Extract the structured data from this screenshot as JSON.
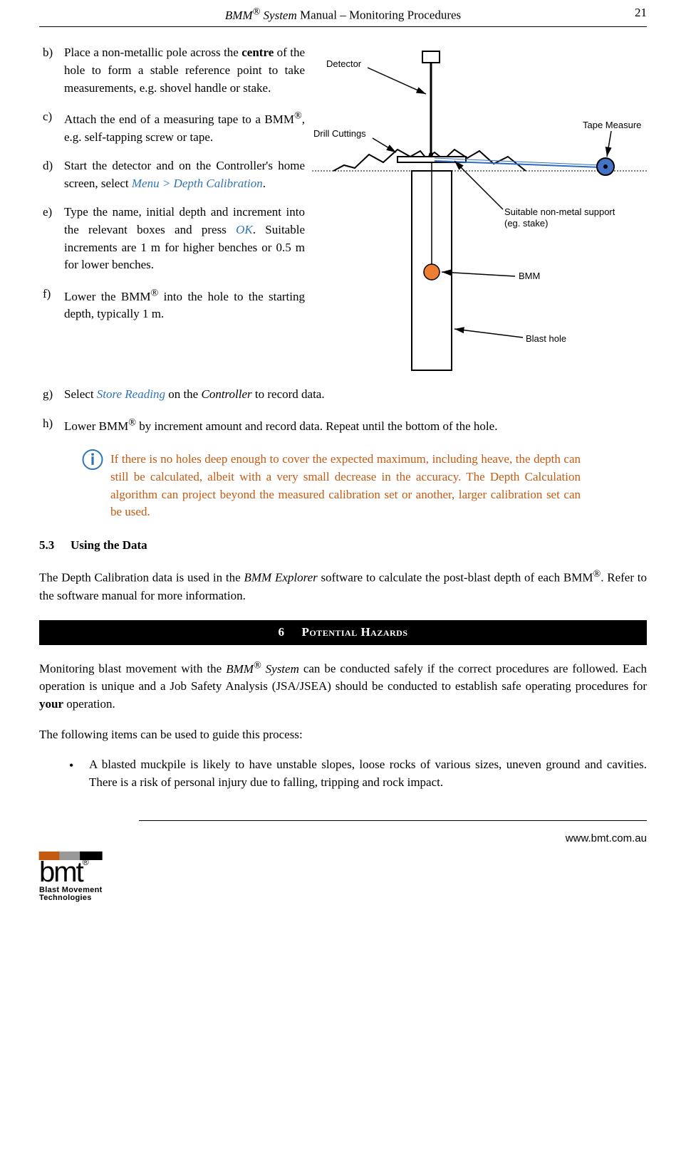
{
  "header": {
    "title_prefix": "BMM",
    "title_reg": "®",
    "title_italic_1": " System",
    "title_rest": " Manual – Monitoring Procedures",
    "page_number": "21"
  },
  "figure": {
    "label_detector": "Detector",
    "label_cuttings": "Drill Cuttings",
    "label_tape": "Tape Measure",
    "label_support_1": "Suitable non-metal support",
    "label_support_2": "(eg. stake)",
    "label_bmm": "BMM",
    "label_hole": "Blast hole",
    "colors": {
      "stroke": "#000000",
      "ground_dash": "#000000",
      "bmm_fill": "#ED7D31",
      "tape_reel_fill": "#4472C4",
      "tape_line": "#2E6CC4"
    }
  },
  "steps": [
    {
      "marker": "b)",
      "html": "Place a non-metallic pole across the <b>centre</b> of the hole to form a stable reference point to take measurements, e.g. shovel handle or stake."
    },
    {
      "marker": "c)",
      "html": "Attach the end of a measuring tape to a BMM<sup>®</sup>, e.g. self-tapping screw or tape."
    },
    {
      "marker": "d)",
      "html": "Start the detector and on the Controller's home screen, select <span class=\"blue-italic\">Menu &gt; Depth Calibration</span>."
    },
    {
      "marker": "e)",
      "html": "Type the name, initial depth and increment into the relevant boxes and press <span class=\"blue-italic\">OK</span>. Suitable increments are 1 m for higher benches or 0.5 m for lower benches."
    },
    {
      "marker": "f)",
      "html": "Lower the BMM<sup>®</sup> into the hole to the starting depth, typically 1 m."
    },
    {
      "marker": "g)",
      "html": "Select <span class=\"blue-italic\">Store Reading</span> on the <i>Controller</i> to record data."
    },
    {
      "marker": "h)",
      "html": "Lower BMM<sup>®</sup> by increment amount and record data. Repeat until the bottom of the hole."
    }
  ],
  "note": {
    "icon": "ⓘ",
    "text": "If there is no holes deep enough to cover the expected maximum, including heave, the depth can still be calculated, albeit with a very small decrease in the accuracy. The Depth Calculation algorithm can project beyond the measured calibration set or another, larger calibration set can be used."
  },
  "subsection": {
    "number": "5.3",
    "title": "Using the Data"
  },
  "using_data_para": "The Depth Calibration data is used in the <i>BMM Explorer</i> software to calculate the post-blast depth of each BMM<sup>®</sup>. Refer to the software manual for more information.",
  "band": {
    "number": "6",
    "title": "Potential Hazards"
  },
  "hazards_intro": "Monitoring blast movement with the <i>BMM<sup>®</sup> System</i> can be conducted safely if the correct procedures are followed. Each operation is unique and a Job Safety Analysis (JSA/JSEA) should be conducted to establish safe operating procedures for <b>your</b> operation.",
  "hazards_lead": "The following items can be used to guide this process:",
  "hazards_bullets": [
    "A blasted muckpile is likely to have unstable slopes, loose rocks of various sizes, uneven ground and cavities. There is a risk of personal injury due to falling, tripping and rock impact."
  ],
  "footer": {
    "logo_main": "bmt",
    "logo_reg": "®",
    "logo_sub1": "Blast Movement",
    "logo_sub2": "Technologies",
    "url": "www.bmt.com.au"
  }
}
